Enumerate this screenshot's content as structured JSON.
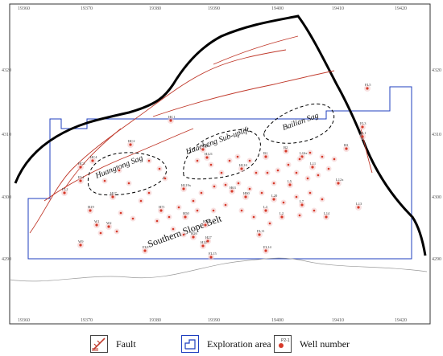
{
  "grid": {
    "x_labels": [
      "19360",
      "19370",
      "19380",
      "19390",
      "19400",
      "19410",
      "19420"
    ],
    "y_labels": [
      "4320",
      "4310",
      "4300",
      "4290"
    ]
  },
  "regions": {
    "huangtong_sag": "Huangtong Sag",
    "huacheng_uplift": "Huacheng Sub-uplift",
    "bailian_sag": "Bailian Sag",
    "southern_slope_belt": "Southern Slope Belt"
  },
  "wells": [
    {
      "id": "FL5",
      "label": "FL5"
    },
    {
      "id": "FL3",
      "label": "FL3"
    },
    {
      "id": "FL1",
      "label": "FL1"
    },
    {
      "id": "HC1",
      "label": "HC1"
    },
    {
      "id": "HC2",
      "label": "HC2"
    },
    {
      "id": "HC3",
      "label": "HC3"
    },
    {
      "id": "HC4",
      "label": "HC4"
    },
    {
      "id": "H120x",
      "label": "H120x"
    },
    {
      "id": "H121",
      "label": "H121"
    },
    {
      "id": "H110",
      "label": "H110"
    },
    {
      "id": "H119x",
      "label": "H119x"
    },
    {
      "id": "H63",
      "label": "H63"
    },
    {
      "id": "H90",
      "label": "H90"
    },
    {
      "id": "H71",
      "label": "H71"
    },
    {
      "id": "H50",
      "label": "H50"
    },
    {
      "id": "H30",
      "label": "H30"
    },
    {
      "id": "H26",
      "label": "H26"
    },
    {
      "id": "H27",
      "label": "H27"
    },
    {
      "id": "H12",
      "label": "H12"
    },
    {
      "id": "FL15",
      "label": "FL15"
    },
    {
      "id": "FL14",
      "label": "FL14"
    },
    {
      "id": "FL11",
      "label": "FL11"
    },
    {
      "id": "FL8",
      "label": "FL8"
    },
    {
      "id": "H17",
      "label": "H17"
    },
    {
      "id": "H19",
      "label": "H19"
    },
    {
      "id": "W9",
      "label": "W9"
    },
    {
      "id": "W1",
      "label": "W1"
    },
    {
      "id": "W2",
      "label": "W2"
    },
    {
      "id": "L16x",
      "label": "L16x"
    },
    {
      "id": "L11",
      "label": "L11"
    },
    {
      "id": "L13",
      "label": "L13"
    },
    {
      "id": "L12x",
      "label": "L12x"
    },
    {
      "id": "L14",
      "label": "L14"
    },
    {
      "id": "L5",
      "label": "L5"
    },
    {
      "id": "L7",
      "label": "L7"
    },
    {
      "id": "L20",
      "label": "L20"
    },
    {
      "id": "L3",
      "label": "L3"
    },
    {
      "id": "L2",
      "label": "L2"
    },
    {
      "id": "B1",
      "label": "B1"
    },
    {
      "id": "B2",
      "label": "B2"
    },
    {
      "id": "B3",
      "label": "B3"
    },
    {
      "id": "FL2",
      "label": "FL2"
    },
    {
      "id": "FL4",
      "label": "FL4"
    }
  ],
  "legend": {
    "fault": "Fault",
    "exploration_area": "Exploration area",
    "well_number": "Well number",
    "well_icon_text": "P2-1"
  },
  "colors": {
    "fault": "#c0392b",
    "boundary": "#000000",
    "exploration_area": "#1f3fbf",
    "sag_outline": "#000000",
    "well": "#d63a2a"
  }
}
